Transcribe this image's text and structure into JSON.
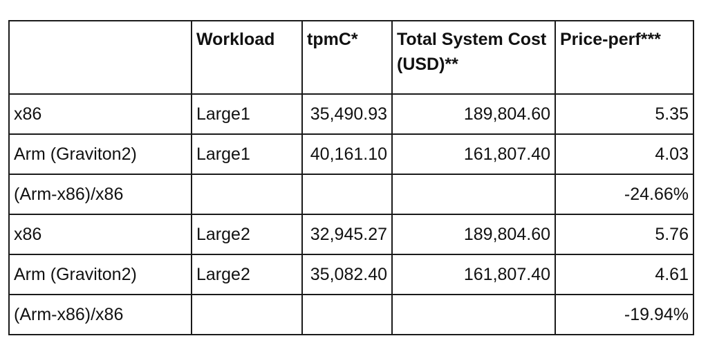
{
  "table": {
    "headers": [
      "",
      "Workload",
      "tpmC*",
      "Total System Cost (USD)**",
      "Price-perf***"
    ],
    "rows": [
      {
        "label": "x86",
        "workload": "Large1",
        "tpmc": "35,490.93",
        "cost": "189,804.60",
        "price_perf": "5.35"
      },
      {
        "label": "Arm (Graviton2)",
        "workload": "Large1",
        "tpmc": "40,161.10",
        "cost": "161,807.40",
        "price_perf": "4.03"
      },
      {
        "label": "(Arm-x86)/x86",
        "workload": "",
        "tpmc": "",
        "cost": "",
        "price_perf": "-24.66%"
      },
      {
        "label": "x86",
        "workload": "Large2",
        "tpmc": "32,945.27",
        "cost": "189,804.60",
        "price_perf": "5.76"
      },
      {
        "label": "Arm (Graviton2)",
        "workload": "Large2",
        "tpmc": "35,082.40",
        "cost": "161,807.40",
        "price_perf": "4.61"
      },
      {
        "label": "(Arm-x86)/x86",
        "workload": "",
        "tpmc": "",
        "cost": "",
        "price_perf": "-19.94%"
      }
    ]
  }
}
